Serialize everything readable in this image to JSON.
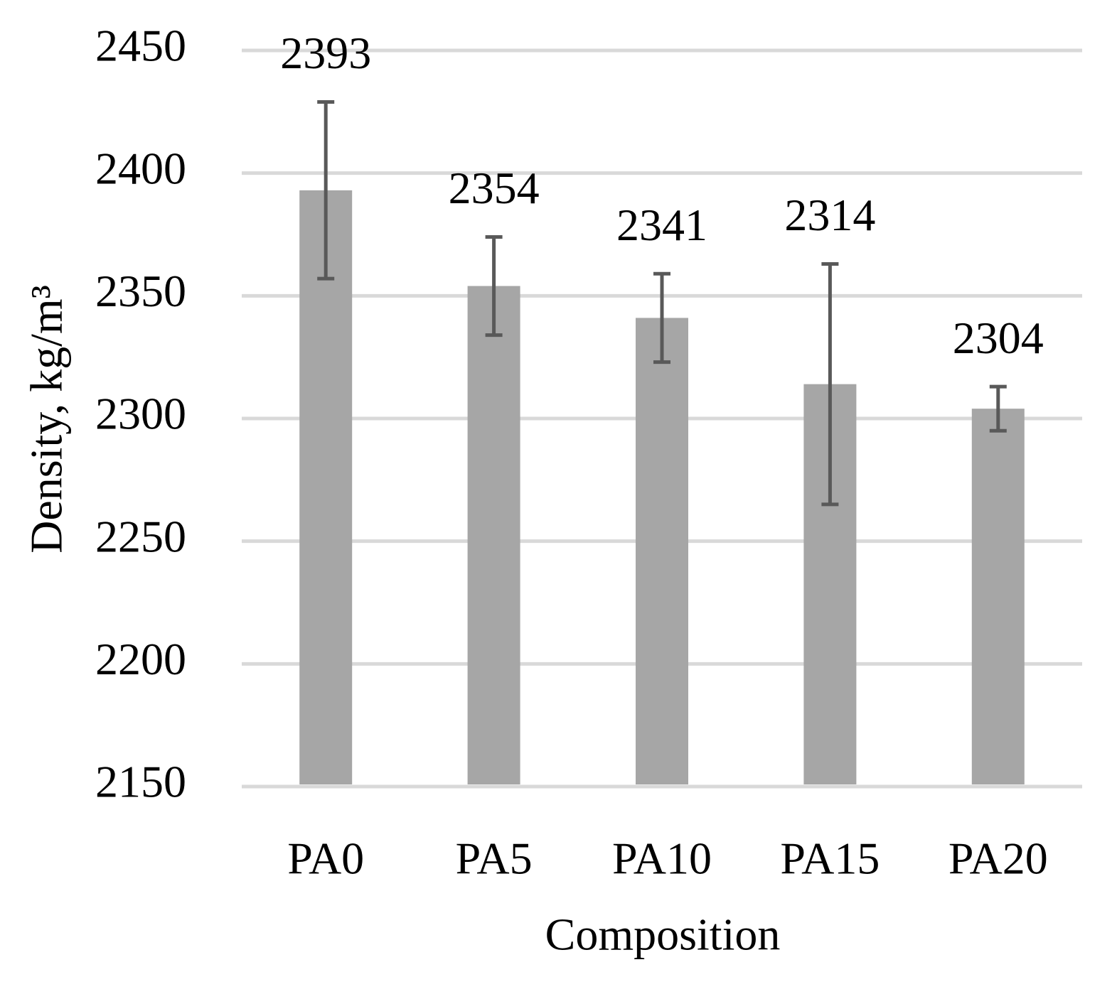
{
  "chart_data": {
    "type": "bar",
    "x_label": "Composition",
    "y_label": "Density, kg/m³",
    "categories": [
      "PA0",
      "PA5",
      "PA10",
      "PA15",
      "PA20"
    ],
    "values": [
      2393,
      2354,
      2341,
      2314,
      2304
    ],
    "errors": [
      36,
      20,
      18,
      49,
      9
    ],
    "color": "#a6a6a6",
    "error_color": "#595959",
    "ylim": [
      2150,
      2450
    ],
    "yticks": [
      2150,
      2200,
      2250,
      2300,
      2350,
      2400,
      2450
    ],
    "grid": true
  }
}
